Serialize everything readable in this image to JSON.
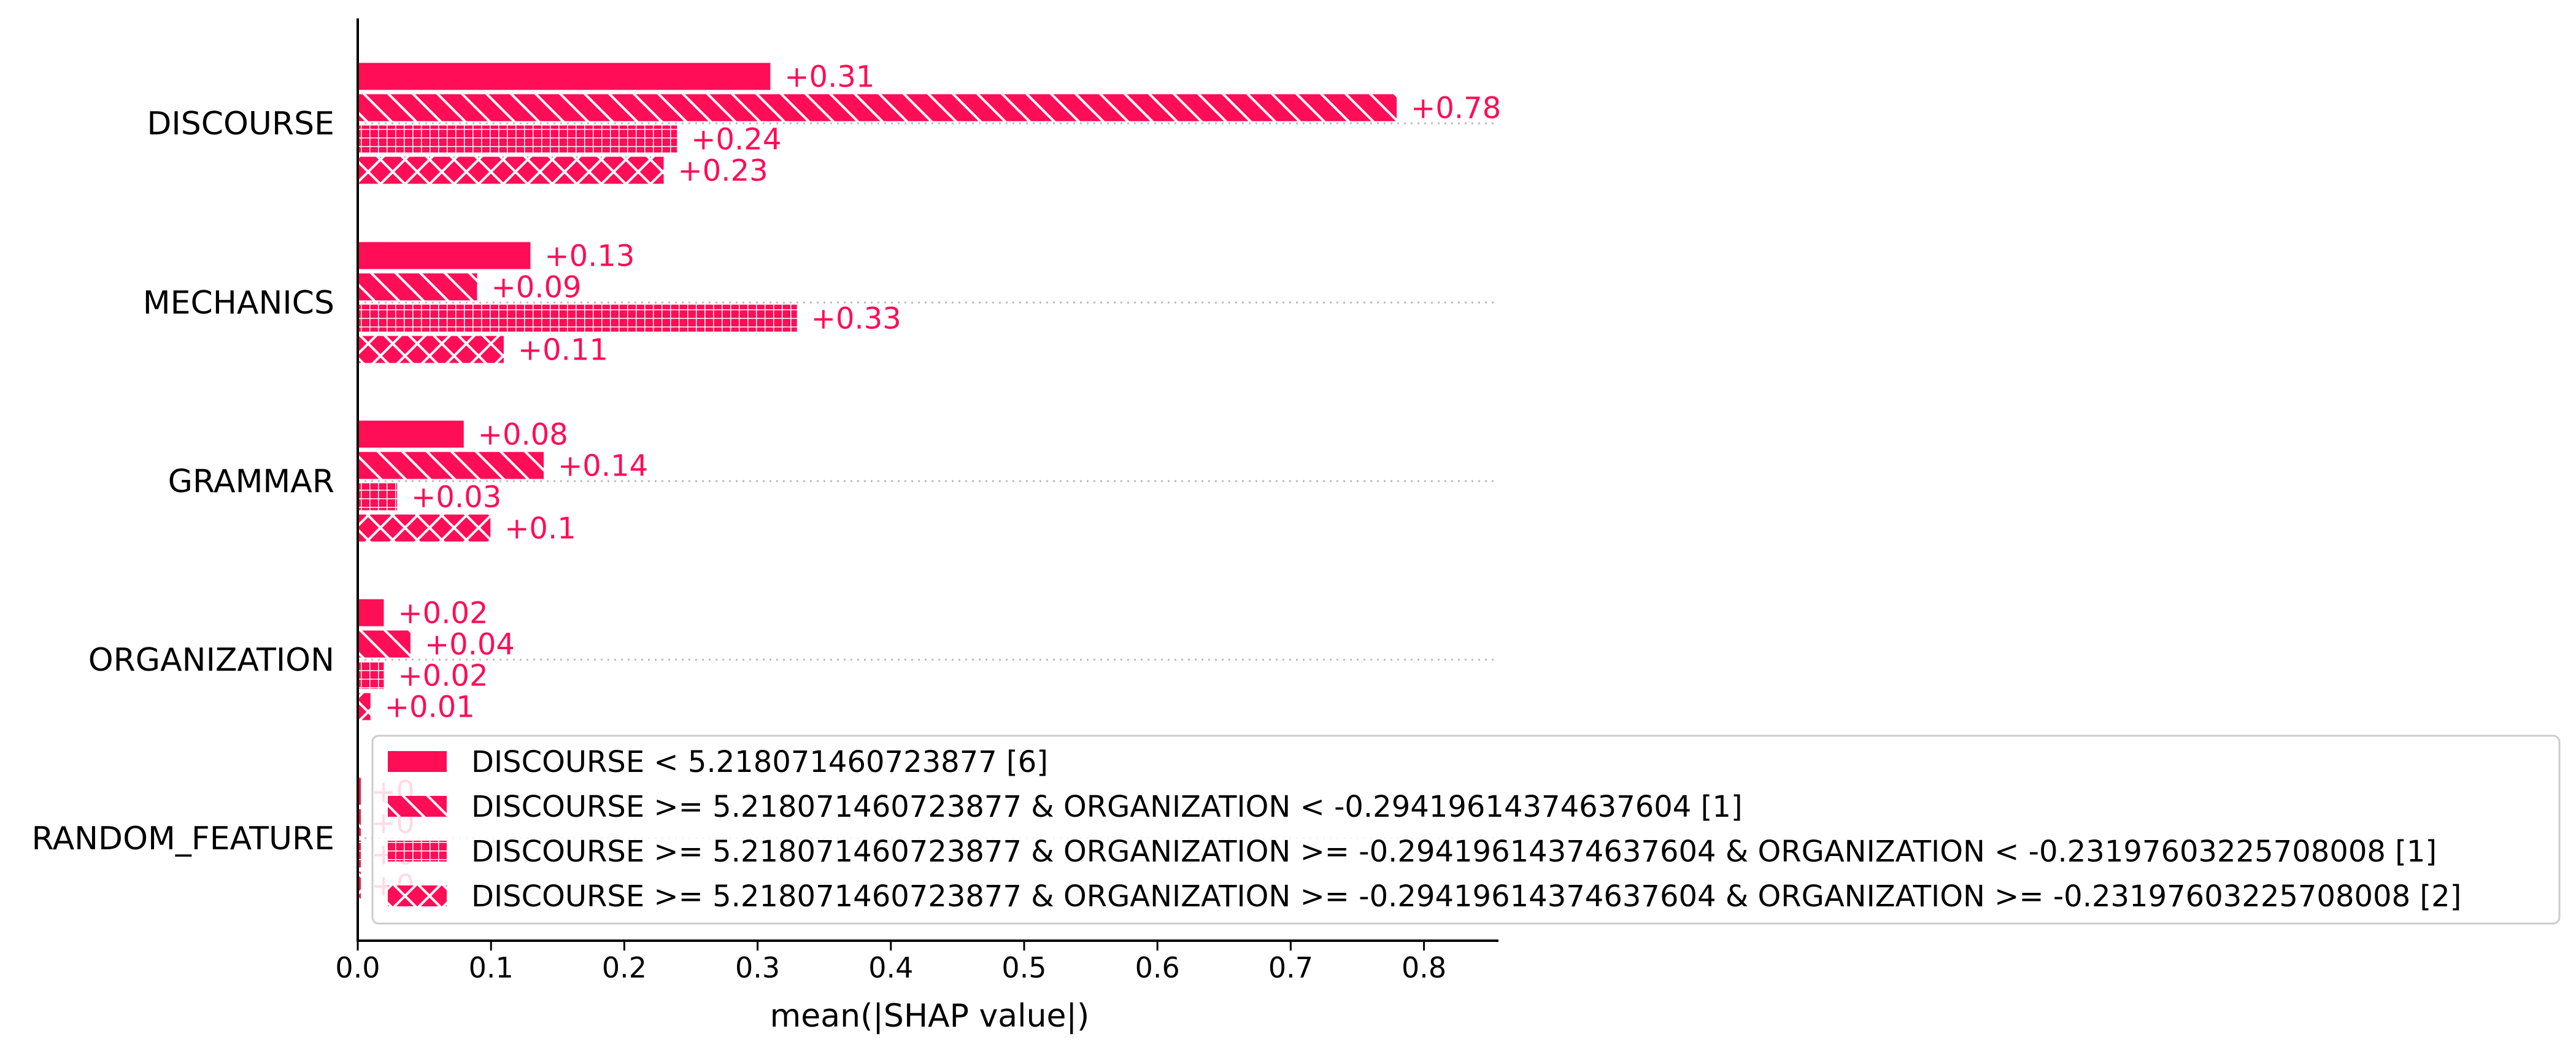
{
  "chart_data": {
    "type": "bar",
    "orientation": "horizontal",
    "title": "",
    "xlabel": "mean(|SHAP value|)",
    "ylabel": "",
    "xlim": [
      0,
      0.86
    ],
    "xticks": [
      0.0,
      0.1,
      0.2,
      0.3,
      0.4,
      0.5,
      0.6,
      0.7,
      0.8
    ],
    "xtick_labels": [
      "0.0",
      "0.1",
      "0.2",
      "0.3",
      "0.4",
      "0.5",
      "0.6",
      "0.7",
      "0.8"
    ],
    "grid": false,
    "bar_color": "#ff0d57",
    "legend_position": "lower-right",
    "categories": [
      "DISCOURSE",
      "MECHANICS",
      "GRAMMAR",
      "ORGANIZATION",
      "RANDOM_FEATURE"
    ],
    "series": [
      {
        "name": "DISCOURSE < 5.218071460723877 [6]",
        "hatch": "solid",
        "values": [
          0.31,
          0.13,
          0.08,
          0.02,
          0.0
        ],
        "labels": [
          "+0.31",
          "+0.13",
          "+0.08",
          "+0.02",
          "+0"
        ]
      },
      {
        "name": "DISCOURSE >= 5.218071460723877 & ORGANIZATION < -0.29419614374637604 [1]",
        "hatch": "diagonal",
        "values": [
          0.78,
          0.09,
          0.14,
          0.04,
          0.0
        ],
        "labels": [
          "+0.78",
          "+0.09",
          "+0.14",
          "+0.04",
          "+0"
        ]
      },
      {
        "name": "DISCOURSE >= 5.218071460723877 & ORGANIZATION >= -0.29419614374637604 & ORGANIZATION < -0.23197603225708008 [1]",
        "hatch": "grid",
        "values": [
          0.24,
          0.33,
          0.03,
          0.02,
          0.0
        ],
        "labels": [
          "+0.24",
          "+0.33",
          "+0.03",
          "+0.02",
          "+0"
        ]
      },
      {
        "name": "DISCOURSE >= 5.218071460723877 & ORGANIZATION >= -0.29419614374637604 & ORGANIZATION >= -0.23197603225708008 [2]",
        "hatch": "cross",
        "values": [
          0.23,
          0.11,
          0.1,
          0.01,
          0.0
        ],
        "labels": [
          "+0.23",
          "+0.11",
          "+0.1",
          "+0.01",
          "+0"
        ]
      }
    ]
  }
}
